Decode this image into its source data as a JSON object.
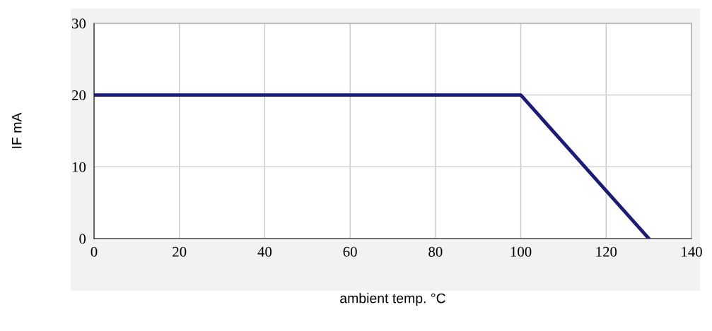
{
  "chart_data": {
    "type": "line",
    "xlabel": "ambient temp. °C",
    "ylabel": "IF mA",
    "x": [
      0,
      100,
      130
    ],
    "series": [
      {
        "color": "#1b1b7a",
        "values": [
          20,
          20,
          0
        ]
      }
    ],
    "xlim": [
      0,
      140
    ],
    "xticks": [
      0,
      20,
      40,
      60,
      80,
      100,
      120,
      140
    ],
    "ylim": [
      0,
      30
    ],
    "yticks": [
      0,
      10,
      20,
      30
    ],
    "grid": true,
    "marker": "none",
    "line_style": "solid"
  }
}
